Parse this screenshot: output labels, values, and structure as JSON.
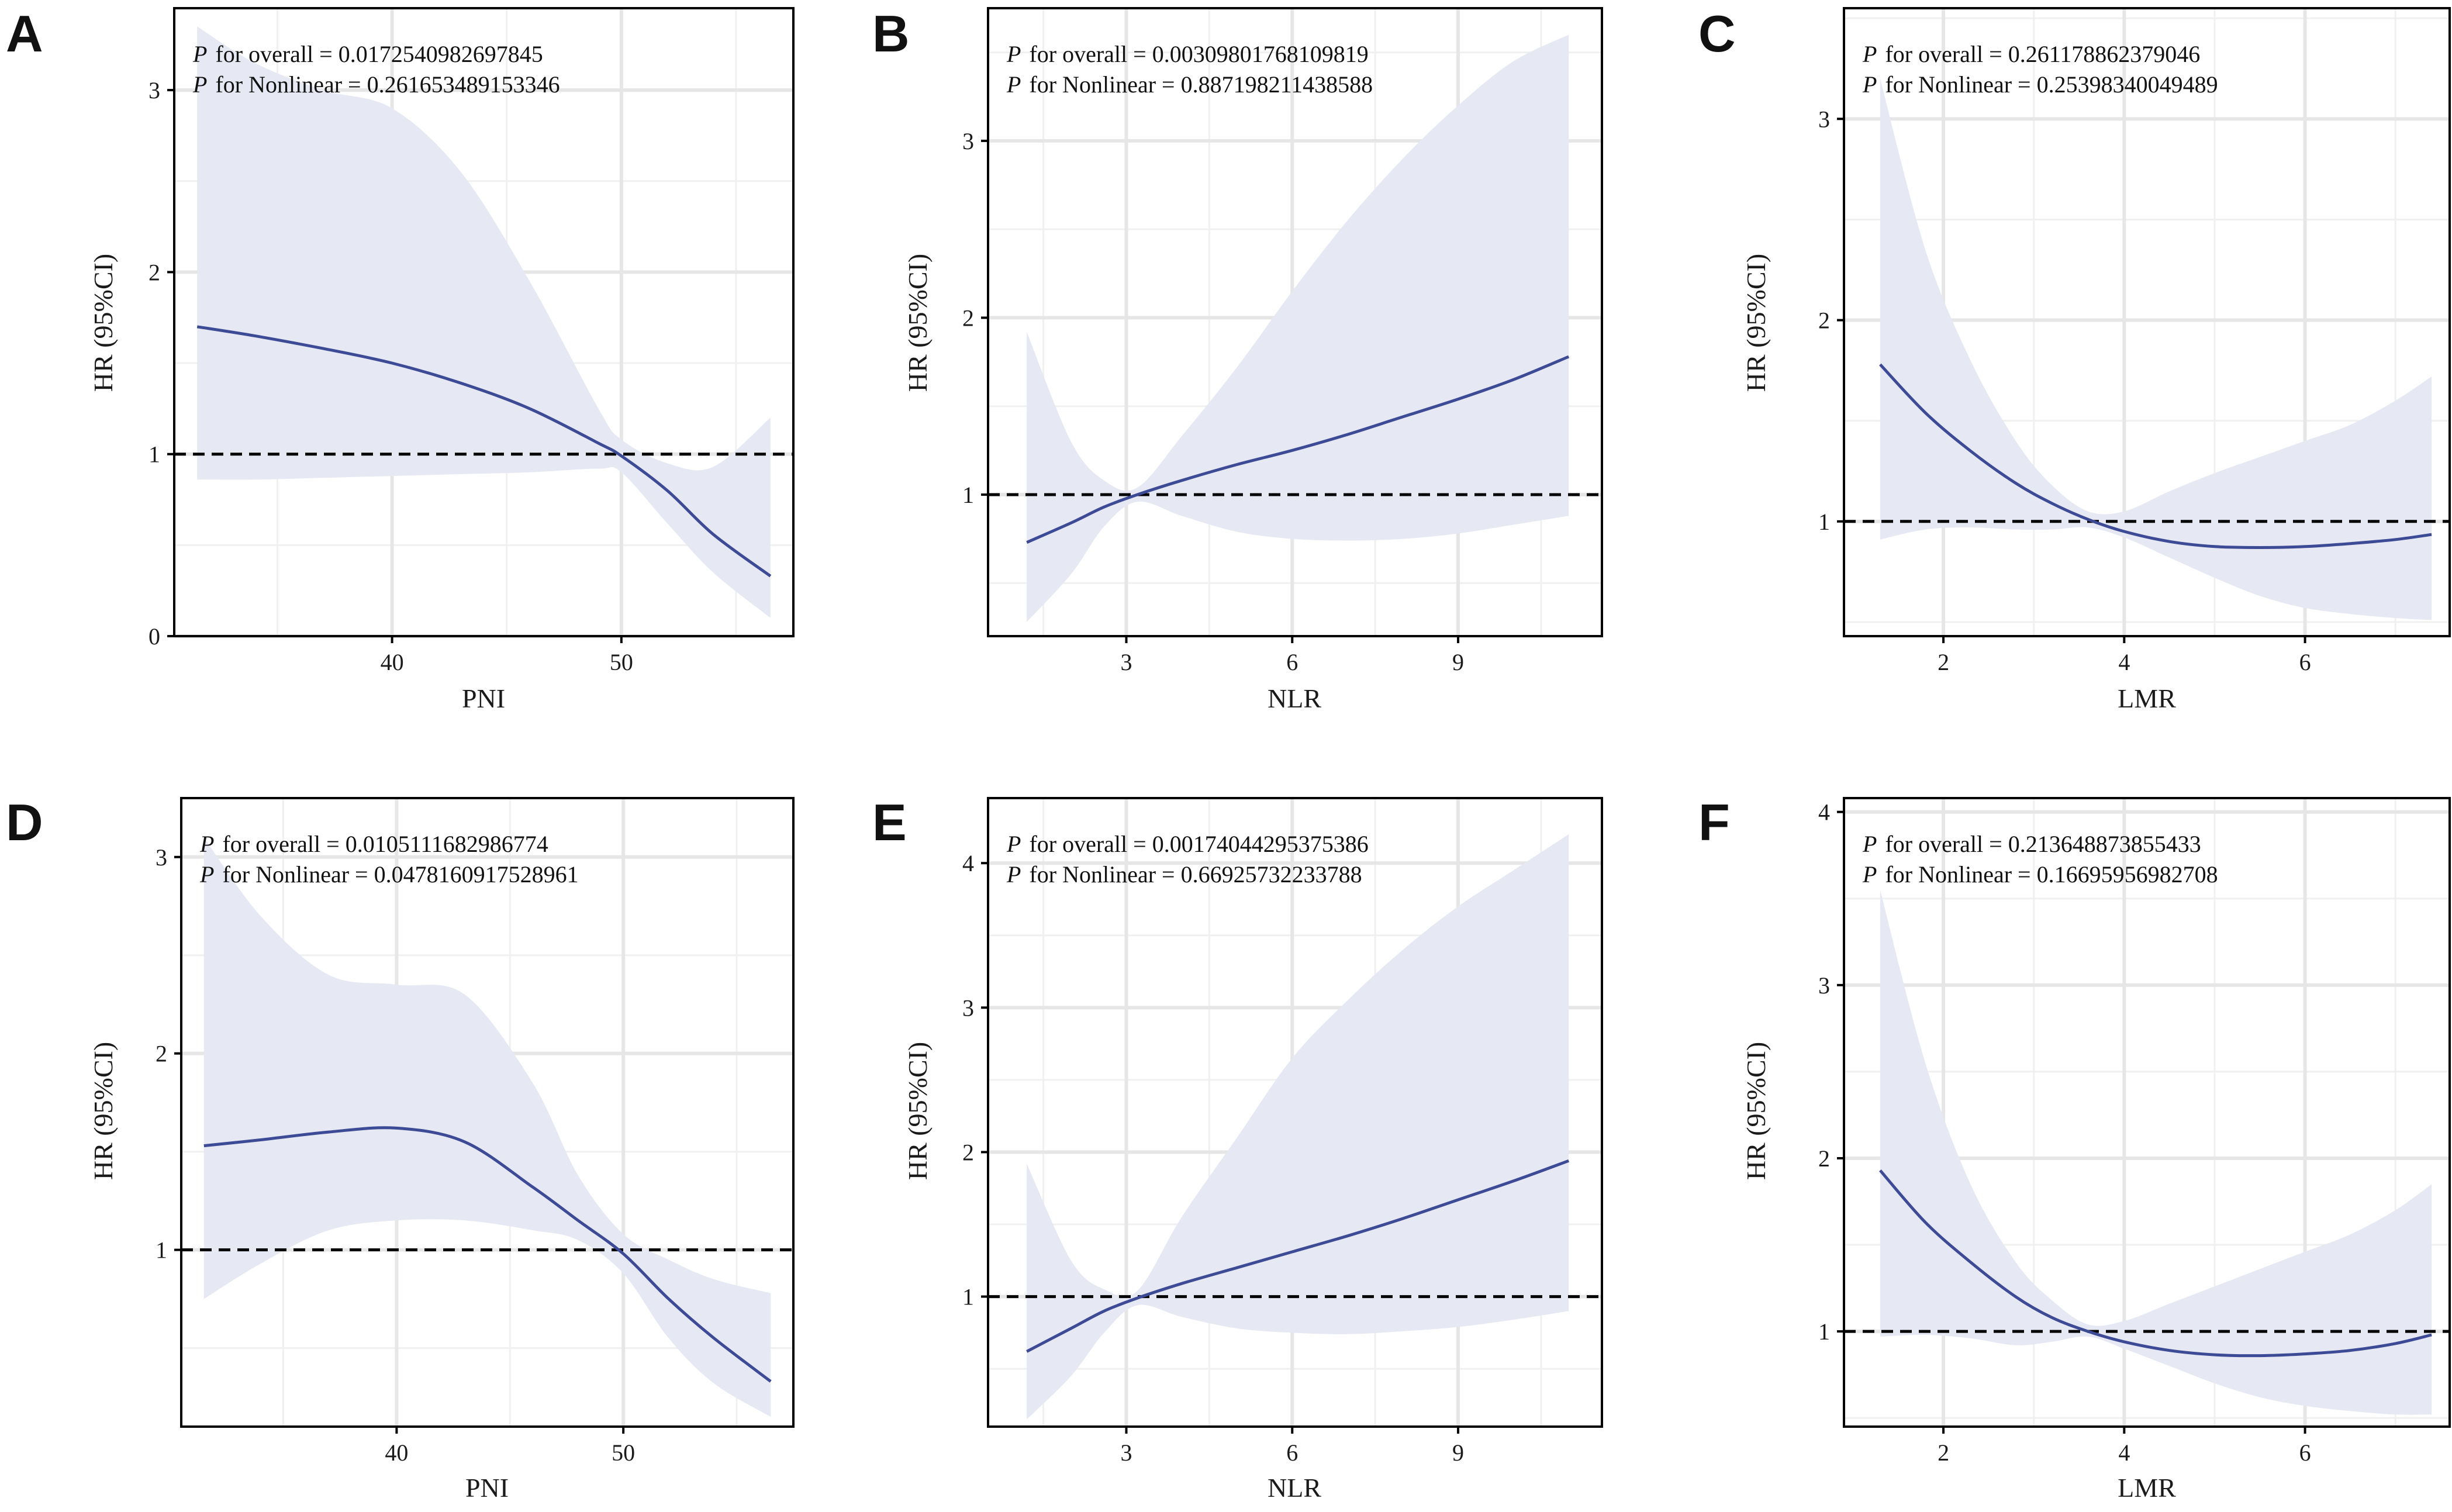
{
  "figure": {
    "ylabel": "HR (95%CI)",
    "colors": {
      "curve": "#3d4a96",
      "band": "#e6e8f3",
      "grid_major": "#e6e6e6",
      "grid_minor": "#f0f0f0",
      "ref_line": "#000000",
      "frame": "#000000"
    }
  },
  "chart_data": [
    {
      "letter": "A",
      "type": "line",
      "xlabel": "PNI",
      "ylabel": "HR (95%CI)",
      "p_label": "P",
      "p_overall_text": "for overall = 0.0172540982697845",
      "p_nonlinear_text": "for Nonlinear = 0.261653489153346",
      "xlim": [
        30.5,
        57.5
      ],
      "ylim": [
        0,
        3.45
      ],
      "xticks": [
        40,
        50
      ],
      "xtick_labels": [
        "40",
        "50"
      ],
      "xminor": [
        35,
        45,
        55
      ],
      "yticks": [
        0,
        1,
        2,
        3
      ],
      "ytick_labels": [
        "0",
        "1",
        "2",
        "3"
      ],
      "yminor": [
        0.5,
        1.5,
        2.5
      ],
      "reference_hr": 1,
      "x": [
        31.5,
        34,
        37,
        40,
        43,
        46,
        49,
        50,
        52,
        54,
        56.5
      ],
      "hr": [
        1.7,
        1.65,
        1.58,
        1.5,
        1.39,
        1.25,
        1.06,
        0.99,
        0.8,
        0.56,
        0.33
      ],
      "lower": [
        0.86,
        0.86,
        0.87,
        0.88,
        0.89,
        0.9,
        0.92,
        0.9,
        0.62,
        0.35,
        0.1
      ],
      "upper": [
        3.35,
        3.15,
        3.0,
        2.9,
        2.55,
        1.95,
        1.25,
        1.08,
        0.95,
        0.93,
        1.2
      ]
    },
    {
      "letter": "B",
      "type": "line",
      "xlabel": "NLR",
      "ylabel": "HR (95%CI)",
      "p_label": "P",
      "p_overall_text": "for overall = 0.00309801768109819",
      "p_nonlinear_text": "for Nonlinear = 0.887198211438588",
      "xlim": [
        0.5,
        11.6
      ],
      "ylim": [
        0.2,
        3.75
      ],
      "xticks": [
        3,
        6,
        9
      ],
      "xtick_labels": [
        "3",
        "6",
        "9"
      ],
      "xminor": [
        1.5,
        4.5,
        7.5,
        10.5
      ],
      "yticks": [
        1,
        2,
        3
      ],
      "ytick_labels": [
        "1",
        "2",
        "3"
      ],
      "yminor": [
        0.5,
        1.5,
        2.5,
        3.5
      ],
      "reference_hr": 1,
      "x": [
        1.2,
        2.0,
        2.6,
        3.2,
        4.0,
        5.0,
        6.0,
        7.0,
        8.0,
        9.0,
        10.0,
        11.0
      ],
      "hr": [
        0.73,
        0.84,
        0.93,
        1.0,
        1.08,
        1.17,
        1.25,
        1.34,
        1.44,
        1.54,
        1.65,
        1.78
      ],
      "lower": [
        0.28,
        0.55,
        0.82,
        0.96,
        0.88,
        0.79,
        0.75,
        0.74,
        0.75,
        0.78,
        0.83,
        0.88
      ],
      "upper": [
        1.92,
        1.3,
        1.08,
        1.04,
        1.33,
        1.72,
        2.15,
        2.55,
        2.9,
        3.2,
        3.45,
        3.6
      ]
    },
    {
      "letter": "C",
      "type": "line",
      "xlabel": "LMR",
      "ylabel": "HR (95%CI)",
      "p_label": "P",
      "p_overall_text": "for overall = 0.261178862379046",
      "p_nonlinear_text": "for Nonlinear = 0.25398340049489",
      "xlim": [
        0.9,
        7.6
      ],
      "ylim": [
        0.43,
        3.55
      ],
      "xticks": [
        2,
        4,
        6
      ],
      "xtick_labels": [
        "2",
        "4",
        "6"
      ],
      "xminor": [
        3,
        5,
        7
      ],
      "yticks": [
        1,
        2,
        3
      ],
      "ytick_labels": [
        "1",
        "2",
        "3"
      ],
      "yminor": [
        0.5,
        1.5,
        2.5,
        3.5
      ],
      "reference_hr": 1,
      "x": [
        1.3,
        1.8,
        2.3,
        2.8,
        3.2,
        3.6,
        4.0,
        4.5,
        5.0,
        5.5,
        6.0,
        6.5,
        7.0,
        7.4
      ],
      "hr": [
        1.78,
        1.54,
        1.35,
        1.19,
        1.09,
        1.01,
        0.95,
        0.9,
        0.875,
        0.87,
        0.875,
        0.89,
        0.91,
        0.935
      ],
      "lower": [
        0.91,
        0.96,
        0.97,
        0.96,
        0.96,
        0.97,
        0.92,
        0.82,
        0.72,
        0.63,
        0.57,
        0.54,
        0.52,
        0.51
      ],
      "upper": [
        3.2,
        2.35,
        1.8,
        1.4,
        1.18,
        1.05,
        1.05,
        1.15,
        1.24,
        1.32,
        1.4,
        1.48,
        1.6,
        1.72
      ]
    },
    {
      "letter": "D",
      "type": "line",
      "xlabel": "PNI",
      "ylabel": "HR (95%CI)",
      "p_label": "P",
      "p_overall_text": "for overall = 0.0105111682986774",
      "p_nonlinear_text": "for Nonlinear = 0.0478160917528961",
      "xlim": [
        30.5,
        57.5
      ],
      "ylim": [
        0.1,
        3.3
      ],
      "xticks": [
        40,
        50
      ],
      "xtick_labels": [
        "40",
        "50"
      ],
      "xminor": [
        35,
        45,
        55
      ],
      "yticks": [
        1,
        2,
        3
      ],
      "ytick_labels": [
        "1",
        "2",
        "3"
      ],
      "yminor": [
        0.5,
        1.5,
        2.5
      ],
      "reference_hr": 1,
      "x": [
        31.5,
        34,
        37,
        40,
        43,
        46,
        48,
        50,
        52,
        54,
        56.5
      ],
      "hr": [
        1.53,
        1.56,
        1.6,
        1.62,
        1.55,
        1.32,
        1.15,
        0.98,
        0.75,
        0.55,
        0.33
      ],
      "lower": [
        0.75,
        0.93,
        1.1,
        1.15,
        1.15,
        1.1,
        1.05,
        0.88,
        0.55,
        0.32,
        0.15
      ],
      "upper": [
        3.1,
        2.7,
        2.4,
        2.35,
        2.3,
        1.85,
        1.38,
        1.08,
        0.95,
        0.85,
        0.78
      ]
    },
    {
      "letter": "E",
      "type": "line",
      "xlabel": "NLR",
      "ylabel": "HR (95%CI)",
      "p_label": "P",
      "p_overall_text": "for overall = 0.00174044295375386",
      "p_nonlinear_text": "for Nonlinear = 0.66925732233788",
      "xlim": [
        0.5,
        11.6
      ],
      "ylim": [
        0.1,
        4.45
      ],
      "xticks": [
        3,
        6,
        9
      ],
      "xtick_labels": [
        "3",
        "6",
        "9"
      ],
      "xminor": [
        1.5,
        4.5,
        7.5,
        10.5
      ],
      "yticks": [
        1,
        2,
        3,
        4
      ],
      "ytick_labels": [
        "1",
        "2",
        "3",
        "4"
      ],
      "yminor": [
        0.5,
        1.5,
        2.5,
        3.5
      ],
      "reference_hr": 1,
      "x": [
        1.2,
        2.0,
        2.6,
        3.2,
        4.0,
        5.0,
        6.0,
        7.0,
        8.0,
        9.0,
        10.0,
        11.0
      ],
      "hr": [
        0.62,
        0.78,
        0.9,
        0.99,
        1.09,
        1.2,
        1.31,
        1.42,
        1.54,
        1.67,
        1.8,
        1.94
      ],
      "lower": [
        0.15,
        0.45,
        0.75,
        0.94,
        0.86,
        0.78,
        0.75,
        0.74,
        0.76,
        0.79,
        0.84,
        0.9
      ],
      "upper": [
        1.92,
        1.25,
        1.05,
        1.04,
        1.55,
        2.1,
        2.65,
        3.05,
        3.4,
        3.7,
        3.95,
        4.2
      ]
    },
    {
      "letter": "F",
      "type": "line",
      "xlabel": "LMR",
      "ylabel": "HR (95%CI)",
      "p_label": "P",
      "p_overall_text": "for overall = 0.213648873855433",
      "p_nonlinear_text": "for Nonlinear = 0.16695956982708",
      "xlim": [
        0.9,
        7.6
      ],
      "ylim": [
        0.45,
        4.08
      ],
      "xticks": [
        2,
        4,
        6
      ],
      "xtick_labels": [
        "2",
        "4",
        "6"
      ],
      "xminor": [
        3,
        5,
        7
      ],
      "yticks": [
        1,
        2,
        3,
        4
      ],
      "ytick_labels": [
        "1",
        "2",
        "3",
        "4"
      ],
      "yminor": [
        0.5,
        1.5,
        2.5,
        3.5
      ],
      "reference_hr": 1,
      "x": [
        1.3,
        1.8,
        2.3,
        2.8,
        3.2,
        3.6,
        4.0,
        4.5,
        5.0,
        5.5,
        6.0,
        6.5,
        7.0,
        7.4
      ],
      "hr": [
        1.93,
        1.63,
        1.4,
        1.2,
        1.08,
        1.0,
        0.94,
        0.89,
        0.865,
        0.86,
        0.87,
        0.89,
        0.93,
        0.98
      ],
      "lower": [
        0.97,
        0.98,
        0.96,
        0.92,
        0.94,
        0.97,
        0.9,
        0.8,
        0.7,
        0.62,
        0.57,
        0.54,
        0.52,
        0.52
      ],
      "upper": [
        3.55,
        2.55,
        1.85,
        1.4,
        1.18,
        1.04,
        1.06,
        1.16,
        1.26,
        1.36,
        1.46,
        1.56,
        1.7,
        1.85
      ]
    }
  ]
}
